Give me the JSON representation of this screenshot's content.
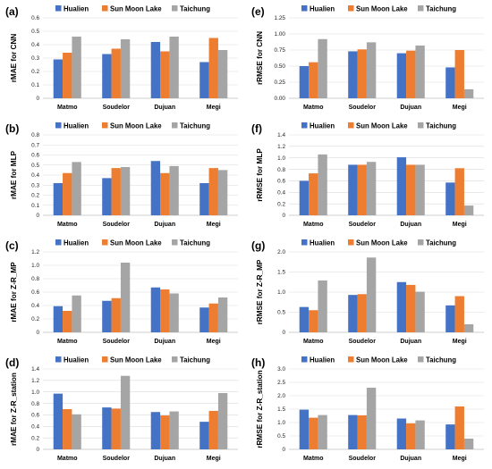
{
  "legend": [
    "Hualien",
    "Sun Moon Lake",
    "Taichung"
  ],
  "colors": {
    "Hualien": "#4472C4",
    "Sun Moon Lake": "#ED7D31",
    "Taichung": "#A5A5A5"
  },
  "chart_data": [
    {
      "type": "bar",
      "panel": "(a)",
      "ylabel": "rMAE for CNN",
      "categories": [
        "Matmo",
        "Soudelor",
        "Dujuan",
        "Megi"
      ],
      "ylim": [
        0,
        0.6
      ],
      "yticks": [
        "0",
        "0.1",
        "0.2",
        "0.3",
        "0.4",
        "0.5",
        "0.6"
      ],
      "grid": true,
      "legend_position": "top",
      "series": [
        {
          "name": "Hualien",
          "values": [
            0.29,
            0.33,
            0.42,
            0.27
          ]
        },
        {
          "name": "Sun Moon Lake",
          "values": [
            0.34,
            0.37,
            0.35,
            0.45
          ]
        },
        {
          "name": "Taichung",
          "values": [
            0.46,
            0.44,
            0.46,
            0.36
          ]
        }
      ]
    },
    {
      "type": "bar",
      "panel": "(e)",
      "ylabel": "rRMSE for CNN",
      "categories": [
        "Matmo",
        "Soudelor",
        "Dujuan",
        "Megi"
      ],
      "ylim": [
        0,
        1.25
      ],
      "yticks": [
        "0.00",
        "0.25",
        "0.50",
        "0.75",
        "1.00",
        "1.25"
      ],
      "grid": true,
      "legend_position": "top",
      "series": [
        {
          "name": "Hualien",
          "values": [
            0.5,
            0.73,
            0.7,
            0.48
          ]
        },
        {
          "name": "Sun Moon Lake",
          "values": [
            0.56,
            0.76,
            0.74,
            0.75
          ]
        },
        {
          "name": "Taichung",
          "values": [
            0.92,
            0.87,
            0.82,
            0.14
          ]
        }
      ]
    },
    {
      "type": "bar",
      "panel": "(b)",
      "ylabel": "rMAE for MLP",
      "categories": [
        "Matmo",
        "Soudelor",
        "Dujuan",
        "Megi"
      ],
      "ylim": [
        0,
        0.8
      ],
      "yticks": [
        "0",
        "0.1",
        "0.2",
        "0.3",
        "0.4",
        "0.5",
        "0.6",
        "0.7",
        "0.8"
      ],
      "grid": true,
      "legend_position": "top",
      "series": [
        {
          "name": "Hualien",
          "values": [
            0.32,
            0.37,
            0.54,
            0.32
          ]
        },
        {
          "name": "Sun Moon Lake",
          "values": [
            0.42,
            0.47,
            0.42,
            0.47
          ]
        },
        {
          "name": "Taichung",
          "values": [
            0.53,
            0.48,
            0.49,
            0.45
          ]
        }
      ]
    },
    {
      "type": "bar",
      "panel": "(f)",
      "ylabel": "rRMSE for MLP",
      "categories": [
        "Matmo",
        "Soudelor",
        "Dujuan",
        "Megi"
      ],
      "ylim": [
        0,
        1.4
      ],
      "yticks": [
        "0",
        "0.2",
        "0.4",
        "0.6",
        "0.8",
        "1.0",
        "1.2",
        "1.4"
      ],
      "grid": true,
      "legend_position": "top",
      "series": [
        {
          "name": "Hualien",
          "values": [
            0.6,
            0.88,
            1.01,
            0.57
          ]
        },
        {
          "name": "Sun Moon Lake",
          "values": [
            0.73,
            0.88,
            0.88,
            0.82
          ]
        },
        {
          "name": "Taichung",
          "values": [
            1.06,
            0.93,
            0.88,
            0.17
          ]
        }
      ]
    },
    {
      "type": "bar",
      "panel": "(c)",
      "ylabel": "rMAE for Z-R_MP",
      "categories": [
        "Matmo",
        "Soudelor",
        "Dujuan",
        "Megi"
      ],
      "ylim": [
        0,
        1.2
      ],
      "yticks": [
        "0",
        "0.2",
        "0.4",
        "0.6",
        "0.8",
        "1.0",
        "1.2"
      ],
      "grid": true,
      "legend_position": "top",
      "series": [
        {
          "name": "Hualien",
          "values": [
            0.39,
            0.47,
            0.67,
            0.37
          ]
        },
        {
          "name": "Sun Moon Lake",
          "values": [
            0.32,
            0.51,
            0.64,
            0.43
          ]
        },
        {
          "name": "Taichung",
          "values": [
            0.55,
            1.04,
            0.58,
            0.52
          ]
        }
      ]
    },
    {
      "type": "bar",
      "panel": "(g)",
      "ylabel": "rRMSE for Z-R_MP",
      "categories": [
        "Matmo",
        "Soudelor",
        "Dujuan",
        "Megi"
      ],
      "ylim": [
        0,
        2.0
      ],
      "yticks": [
        "0",
        "0.5",
        "1.0",
        "1.5",
        "2.0"
      ],
      "grid": true,
      "legend_position": "top",
      "series": [
        {
          "name": "Hualien",
          "values": [
            0.63,
            0.93,
            1.25,
            0.67
          ]
        },
        {
          "name": "Sun Moon Lake",
          "values": [
            0.55,
            0.95,
            1.18,
            0.9
          ]
        },
        {
          "name": "Taichung",
          "values": [
            1.29,
            1.86,
            1.01,
            0.2
          ]
        }
      ]
    },
    {
      "type": "bar",
      "panel": "(d)",
      "ylabel": "rMAE for Z-R_station",
      "categories": [
        "Matmo",
        "Soudelor",
        "Dujuan",
        "Megi"
      ],
      "ylim": [
        0,
        1.4
      ],
      "yticks": [
        "0",
        "0.2",
        "0.4",
        "0.6",
        "0.8",
        "1.0",
        "1.2",
        "1.4"
      ],
      "grid": true,
      "legend_position": "top",
      "series": [
        {
          "name": "Hualien",
          "values": [
            0.97,
            0.73,
            0.65,
            0.48
          ]
        },
        {
          "name": "Sun Moon Lake",
          "values": [
            0.7,
            0.71,
            0.59,
            0.67
          ]
        },
        {
          "name": "Taichung",
          "values": [
            0.61,
            1.28,
            0.66,
            0.98
          ]
        }
      ]
    },
    {
      "type": "bar",
      "panel": "(h)",
      "ylabel": "rRMSE for Z-R_station",
      "categories": [
        "Matmo",
        "Soudelor",
        "Dujuan",
        "Megi"
      ],
      "ylim": [
        0,
        3.0
      ],
      "yticks": [
        "0",
        "0.5",
        "1.0",
        "1.5",
        "2.0",
        "2.5",
        "3.0"
      ],
      "grid": true,
      "legend_position": "top",
      "series": [
        {
          "name": "Hualien",
          "values": [
            1.48,
            1.28,
            1.15,
            0.93
          ]
        },
        {
          "name": "Sun Moon Lake",
          "values": [
            1.18,
            1.27,
            0.97,
            1.6
          ]
        },
        {
          "name": "Taichung",
          "values": [
            1.28,
            2.3,
            1.08,
            0.4
          ]
        }
      ]
    }
  ]
}
